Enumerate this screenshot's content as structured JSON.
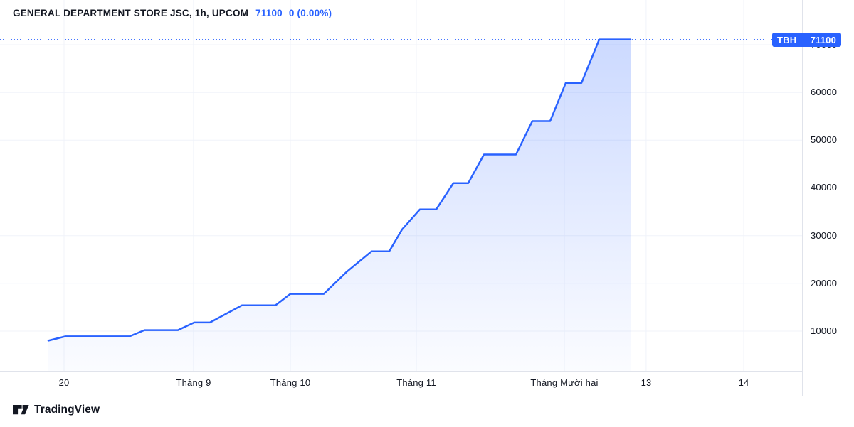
{
  "header": {
    "title": "GENERAL DEPARTMENT STORE JSC, 1h, UPCOM",
    "price": "71100",
    "change": "0 (0.00%)"
  },
  "price_tag": {
    "symbol": "TBH",
    "value": "71100"
  },
  "footer": {
    "brand": "TradingView"
  },
  "colors": {
    "accent": "#2962ff",
    "text": "#131722",
    "grid": "#f0f3fa",
    "border": "#e0e3eb",
    "fill_top": "rgba(41,98,255,0.24)",
    "fill_bottom": "rgba(41,98,255,0.02)"
  },
  "chart_data": {
    "type": "area",
    "title": "GENERAL DEPARTMENT STORE JSC, 1h, UPCOM",
    "symbol": "TBH",
    "exchange": "UPCOM",
    "interval": "1h",
    "last_price": 71100,
    "change_text": "0 (0.00%)",
    "grid": true,
    "y_ticks": [
      10000,
      20000,
      30000,
      40000,
      50000,
      60000,
      70000
    ],
    "y_domain_visible": [
      1660,
      79380
    ],
    "last_price_line": 71100,
    "x_ticks": [
      {
        "label": "20",
        "x": 0.0799
      },
      {
        "label": "Tháng 9",
        "x": 0.2413
      },
      {
        "label": "Tháng 10",
        "x": 0.362
      },
      {
        "label": "Tháng 11",
        "x": 0.5191
      },
      {
        "label": "Tháng Mười hai",
        "x": 0.7036
      },
      {
        "label": "13",
        "x": 0.8056
      },
      {
        "label": "14",
        "x": 0.9272
      }
    ],
    "points": [
      {
        "x": 0.0603,
        "date": "19 Aug",
        "price": 8000
      },
      {
        "x": 0.0816,
        "date": "20 Aug",
        "price": 8900
      },
      {
        "x": 0.1615,
        "date": "26 Aug",
        "price": 8900
      },
      {
        "x": 0.1801,
        "date": "27 Aug",
        "price": 10200
      },
      {
        "x": 0.2218,
        "date": "31 Aug",
        "price": 10200
      },
      {
        "x": 0.2422,
        "date": "1 Sep",
        "price": 11800
      },
      {
        "x": 0.2618,
        "date": "6 Sep",
        "price": 11800
      },
      {
        "x": 0.3017,
        "date": "15 Sep",
        "price": 15400
      },
      {
        "x": 0.3434,
        "date": "24 Sep",
        "price": 15400
      },
      {
        "x": 0.362,
        "date": "1 Oct",
        "price": 17800
      },
      {
        "x": 0.4037,
        "date": "9 Oct",
        "price": 17800
      },
      {
        "x": 0.4321,
        "date": "15 Oct",
        "price": 22400
      },
      {
        "x": 0.4632,
        "date": "21 Oct",
        "price": 26700
      },
      {
        "x": 0.4853,
        "date": "25 Oct",
        "price": 26700
      },
      {
        "x": 0.5013,
        "date": "28 Oct",
        "price": 31300
      },
      {
        "x": 0.5235,
        "date": "2 Nov",
        "price": 35500
      },
      {
        "x": 0.5439,
        "date": "5 Nov",
        "price": 35500
      },
      {
        "x": 0.5652,
        "date": "9 Nov",
        "price": 41000
      },
      {
        "x": 0.5838,
        "date": "12 Nov",
        "price": 41000
      },
      {
        "x": 0.6034,
        "date": "15 Nov",
        "price": 47000
      },
      {
        "x": 0.6433,
        "date": "22 Nov",
        "price": 47000
      },
      {
        "x": 0.6637,
        "date": "25 Nov",
        "price": 54000
      },
      {
        "x": 0.6859,
        "date": "29 Nov",
        "price": 54000
      },
      {
        "x": 0.7054,
        "date": "1 Dec",
        "price": 62000
      },
      {
        "x": 0.725,
        "date": "3 Dec",
        "price": 62000
      },
      {
        "x": 0.7471,
        "date": "6 Dec",
        "price": 71100
      },
      {
        "x": 0.7862,
        "date": "10 Dec",
        "price": 71100
      }
    ]
  }
}
